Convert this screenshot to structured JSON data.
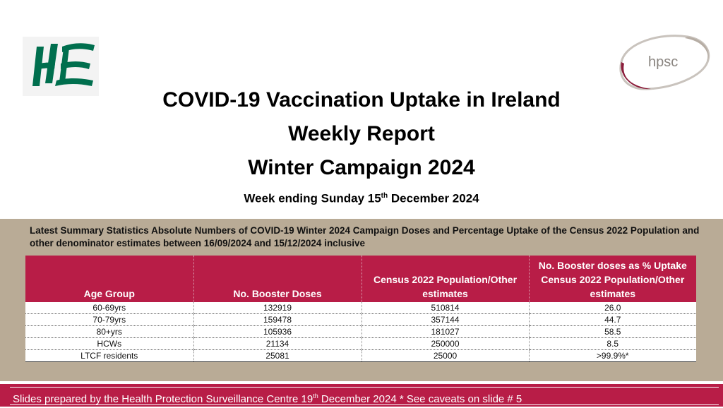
{
  "logos": {
    "hse": "HSE",
    "hpsc": "hpsc"
  },
  "title": {
    "line1": "COVID-19 Vaccination Uptake in Ireland",
    "line2": "Weekly Report",
    "line3": "Winter Campaign 2024",
    "week_prefix": "Week ending Sunday 15",
    "week_sup": "th",
    "week_suffix": " December 2024"
  },
  "caption": "Latest Summary Statistics Absolute Numbers of COVID-19  Winter 2024 Campaign Doses and Percentage Uptake of the Census 2022 Population and other denominator estimates between 16/09/2024 and 15/12/2024 inclusive",
  "table": {
    "headers": [
      "Age Group",
      "No. Booster Doses",
      "Census 2022 Population/Other estimates",
      "No. Booster doses as % Uptake Census 2022 Population/Other estimates"
    ],
    "rows": [
      [
        "60-69yrs",
        "132919",
        "510814",
        "26.0"
      ],
      [
        "70-79yrs",
        "159478",
        "357144",
        "44.7"
      ],
      [
        "80+yrs",
        "105936",
        "181027",
        "58.5"
      ],
      [
        "HCWs",
        "21134",
        "250000",
        "8.5"
      ],
      [
        "LTCF residents",
        "25081",
        "25000",
        ">99.9%*"
      ]
    ]
  },
  "footer": {
    "prefix": "Slides prepared by the Health Protection Surveillance Centre 19",
    "sup": "th",
    "suffix": " December 2024   * See caveats on slide # 5"
  },
  "colors": {
    "accent": "#b81d47",
    "hse_green": "#006f4e",
    "panel": "#b9ab96"
  }
}
